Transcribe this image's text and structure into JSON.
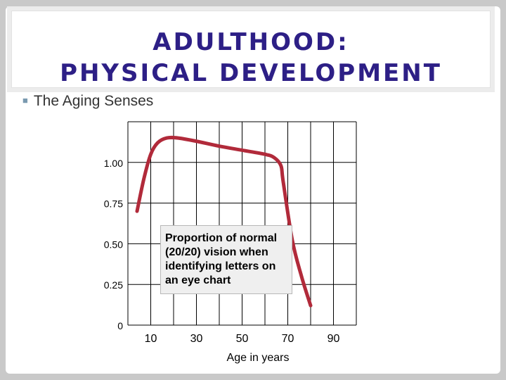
{
  "slide": {
    "title": "ADULTHOOD:\nPHYSICAL DEVELOPMENT",
    "bullet": "The Aging Senses",
    "colors": {
      "title": "#2d1f86",
      "line": "#b12a3a"
    }
  },
  "chart_data": {
    "type": "line",
    "title": "",
    "xlabel": "Age in years",
    "ylabel": "",
    "x_ticks": [
      10,
      30,
      50,
      70,
      90
    ],
    "x_tick_labels": [
      "10",
      "30",
      "50",
      "70",
      "90"
    ],
    "y_ticks": [
      0,
      0.25,
      0.5,
      0.75,
      1.0
    ],
    "y_tick_labels": [
      "0",
      "0.25",
      "0.50",
      "0.75",
      "1.00"
    ],
    "xlim": [
      0,
      100
    ],
    "ylim": [
      0,
      1.25
    ],
    "grid": true,
    "annotation": "Proportion of normal (20/20) vision when identifying letters on an eye chart",
    "series": [
      {
        "name": "",
        "x": [
          4,
          7,
          10,
          13,
          17,
          22,
          30,
          40,
          50,
          60,
          64,
          67,
          68,
          72,
          76,
          80
        ],
        "y": [
          0.7,
          0.9,
          1.05,
          1.12,
          1.15,
          1.15,
          1.13,
          1.1,
          1.075,
          1.05,
          1.03,
          0.98,
          0.88,
          0.52,
          0.3,
          0.12
        ]
      }
    ]
  }
}
